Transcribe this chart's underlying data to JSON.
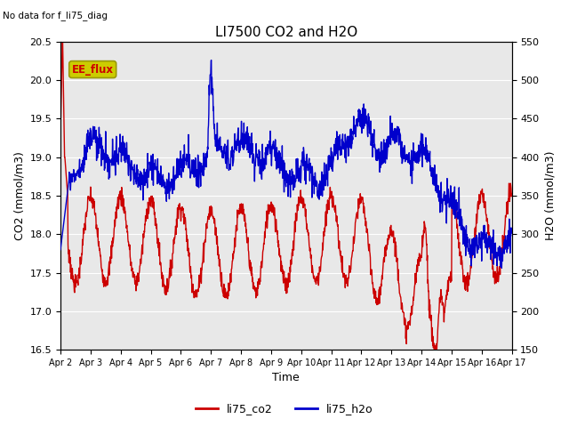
{
  "title": "LI7500 CO2 and H2O",
  "top_left_text": "No data for f_li75_diag",
  "xlabel": "Time",
  "ylabel_left": "CO2 (mmol/m3)",
  "ylabel_right": "H2O (mmol/m3)",
  "ylim_left": [
    16.5,
    20.5
  ],
  "ylim_right": [
    150,
    550
  ],
  "yticks_left": [
    16.5,
    17.0,
    17.5,
    18.0,
    18.5,
    19.0,
    19.5,
    20.0,
    20.5
  ],
  "yticks_right": [
    150,
    200,
    250,
    300,
    350,
    400,
    450,
    500,
    550
  ],
  "xtick_labels": [
    "Apr 2",
    "Apr 3",
    "Apr 4",
    "Apr 5",
    "Apr 6",
    "Apr 7",
    "Apr 8",
    "Apr 9",
    "Apr 10",
    "Apr 11",
    "Apr 12",
    "Apr 13",
    "Apr 14",
    "Apr 15",
    "Apr 16",
    "Apr 17"
  ],
  "co2_color": "#cc0000",
  "h2o_color": "#0000cc",
  "legend_labels": [
    "li75_co2",
    "li75_h2o"
  ],
  "ee_flux_box_color": "#cccc00",
  "ee_flux_text_color": "#cc0000",
  "background_color": "#e8e8e8",
  "linewidth": 1.0
}
